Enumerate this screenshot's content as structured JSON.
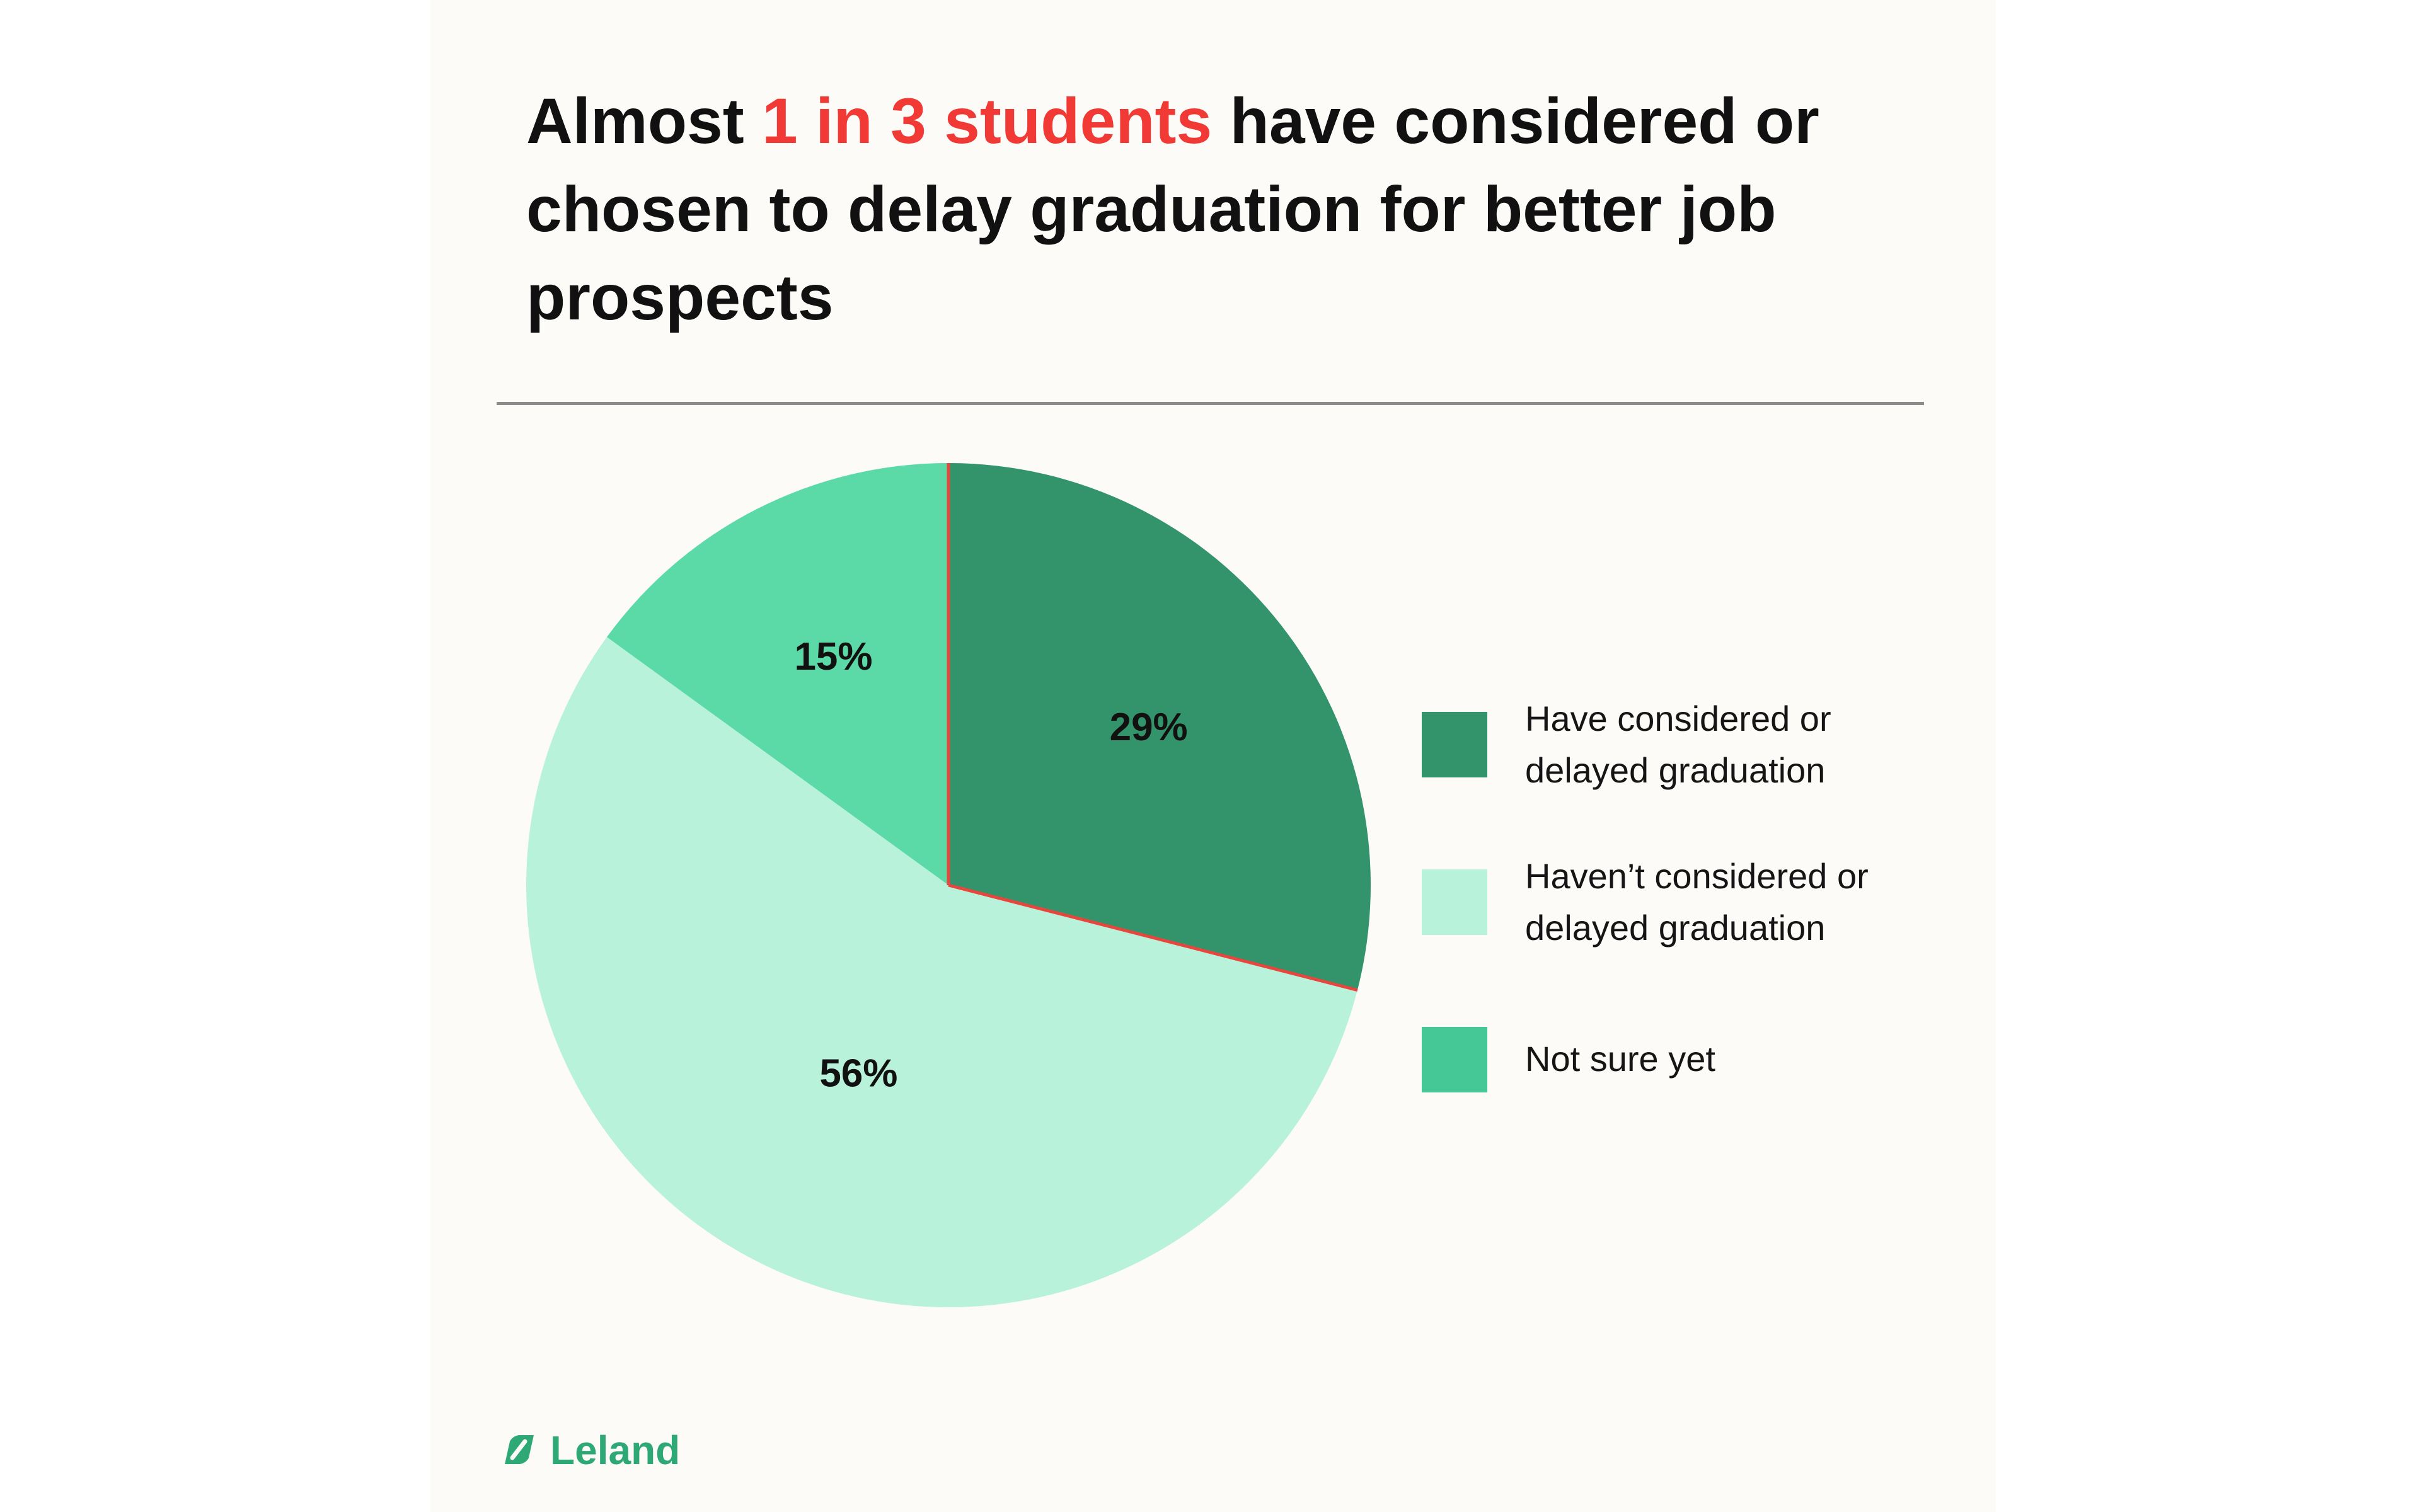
{
  "title": {
    "prefix": "Almost ",
    "highlight": "1 in 3 students",
    "suffix": " have considered or chosen to delay graduation for better job prospects"
  },
  "chart_data": {
    "type": "pie",
    "start": "12 o'clock, clockwise",
    "slices": [
      {
        "label": "Have considered or delayed graduation",
        "value": 29,
        "display": "29%",
        "color": "#33946c"
      },
      {
        "label": "Haven’t considered or delayed graduation",
        "value": 56,
        "display": "56%",
        "color": "#b8f2da"
      },
      {
        "label": "Not sure yet",
        "value": 15,
        "display": "15%",
        "color": "#5bdaa8"
      }
    ],
    "divider_color": "#e8463c",
    "legend_placement": "right"
  },
  "legend": [
    {
      "label": "Have considered or\ndelayed graduation",
      "color": "#33946c"
    },
    {
      "label": "Haven’t considered or\ndelayed graduation",
      "color": "#b8f2da"
    },
    {
      "label": "Not sure yet",
      "color": "#46c796"
    }
  ],
  "brand": {
    "name": "Leland",
    "color": "#2ea874"
  }
}
